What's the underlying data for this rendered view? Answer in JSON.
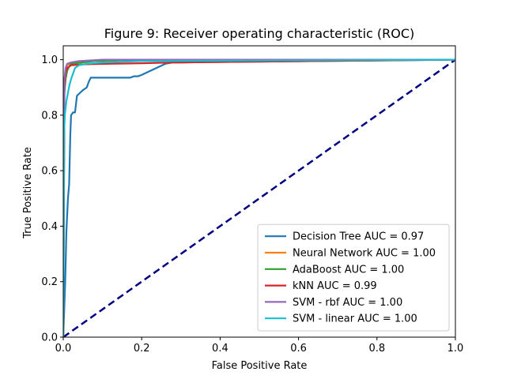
{
  "chart_data": {
    "type": "line",
    "title": "Figure 9: Receiver operating characteristic (ROC)",
    "xlabel": "False Positive Rate",
    "ylabel": "True Positive Rate",
    "xlim": [
      0,
      1
    ],
    "ylim": [
      0,
      1.05
    ],
    "x_ticks": [
      "0.0",
      "0.2",
      "0.4",
      "0.6",
      "0.8",
      "1.0"
    ],
    "y_ticks": [
      "0.0",
      "0.2",
      "0.4",
      "0.6",
      "0.8",
      "1.0"
    ],
    "grid": false,
    "legend_position": "lower-right",
    "series": [
      {
        "name": "Decision Tree AUC = 0.97",
        "color": "#1f77b4",
        "x": [
          0,
          0.005,
          0.008,
          0.012,
          0.015,
          0.018,
          0.02,
          0.025,
          0.03,
          0.035,
          0.05,
          0.06,
          0.065,
          0.07,
          0.075,
          0.17,
          0.18,
          0.19,
          0.2,
          0.26,
          0.28,
          0.3,
          1.0
        ],
        "y": [
          0,
          0.2,
          0.38,
          0.5,
          0.55,
          0.73,
          0.8,
          0.81,
          0.81,
          0.87,
          0.89,
          0.9,
          0.92,
          0.935,
          0.935,
          0.935,
          0.94,
          0.94,
          0.945,
          0.985,
          0.99,
          0.99,
          1.0
        ]
      },
      {
        "name": "Neural Network AUC = 1.00",
        "color": "#ff7f0e",
        "x": [
          0,
          0.002,
          0.005,
          0.008,
          0.01,
          0.015,
          0.02,
          0.05,
          0.1,
          0.2,
          1.0
        ],
        "y": [
          0,
          0.9,
          0.95,
          0.97,
          0.98,
          0.985,
          0.99,
          0.995,
          0.998,
          1.0,
          1.0
        ]
      },
      {
        "name": "AdaBoost AUC = 1.00",
        "color": "#2ca02c",
        "x": [
          0,
          0.003,
          0.006,
          0.01,
          0.015,
          0.02,
          0.05,
          0.08,
          0.14,
          0.2,
          1.0
        ],
        "y": [
          0,
          0.88,
          0.93,
          0.96,
          0.975,
          0.985,
          0.99,
          0.995,
          0.998,
          1.0,
          1.0
        ]
      },
      {
        "name": "kNN AUC = 0.99",
        "color": "#d62728",
        "x": [
          0,
          0.003,
          0.006,
          0.01,
          0.02,
          0.05,
          0.1,
          0.2,
          0.28,
          0.3,
          1.0
        ],
        "y": [
          0,
          0.9,
          0.95,
          0.97,
          0.98,
          0.983,
          0.985,
          0.987,
          0.99,
          0.99,
          1.0
        ]
      },
      {
        "name": "SVM - rbf AUC = 1.00",
        "color": "#9467bd",
        "x": [
          0,
          0.003,
          0.006,
          0.01,
          0.02,
          0.04,
          0.08,
          0.1,
          1.0
        ],
        "y": [
          0,
          0.93,
          0.97,
          0.985,
          0.99,
          0.995,
          0.998,
          1.0,
          1.0
        ]
      },
      {
        "name": "SVM - linear AUC = 1.00",
        "color": "#17becf",
        "x": [
          0,
          0.002,
          0.004,
          0.008,
          0.012,
          0.016,
          0.02,
          0.025,
          0.03,
          0.04,
          0.06,
          0.1,
          0.2,
          1.0
        ],
        "y": [
          0,
          0.73,
          0.8,
          0.85,
          0.88,
          0.91,
          0.93,
          0.95,
          0.97,
          0.98,
          0.985,
          0.99,
          0.995,
          1.0
        ]
      }
    ],
    "reference_line": {
      "x": [
        0,
        1
      ],
      "y": [
        0,
        1
      ],
      "color": "#000080",
      "style": "dashed"
    }
  }
}
